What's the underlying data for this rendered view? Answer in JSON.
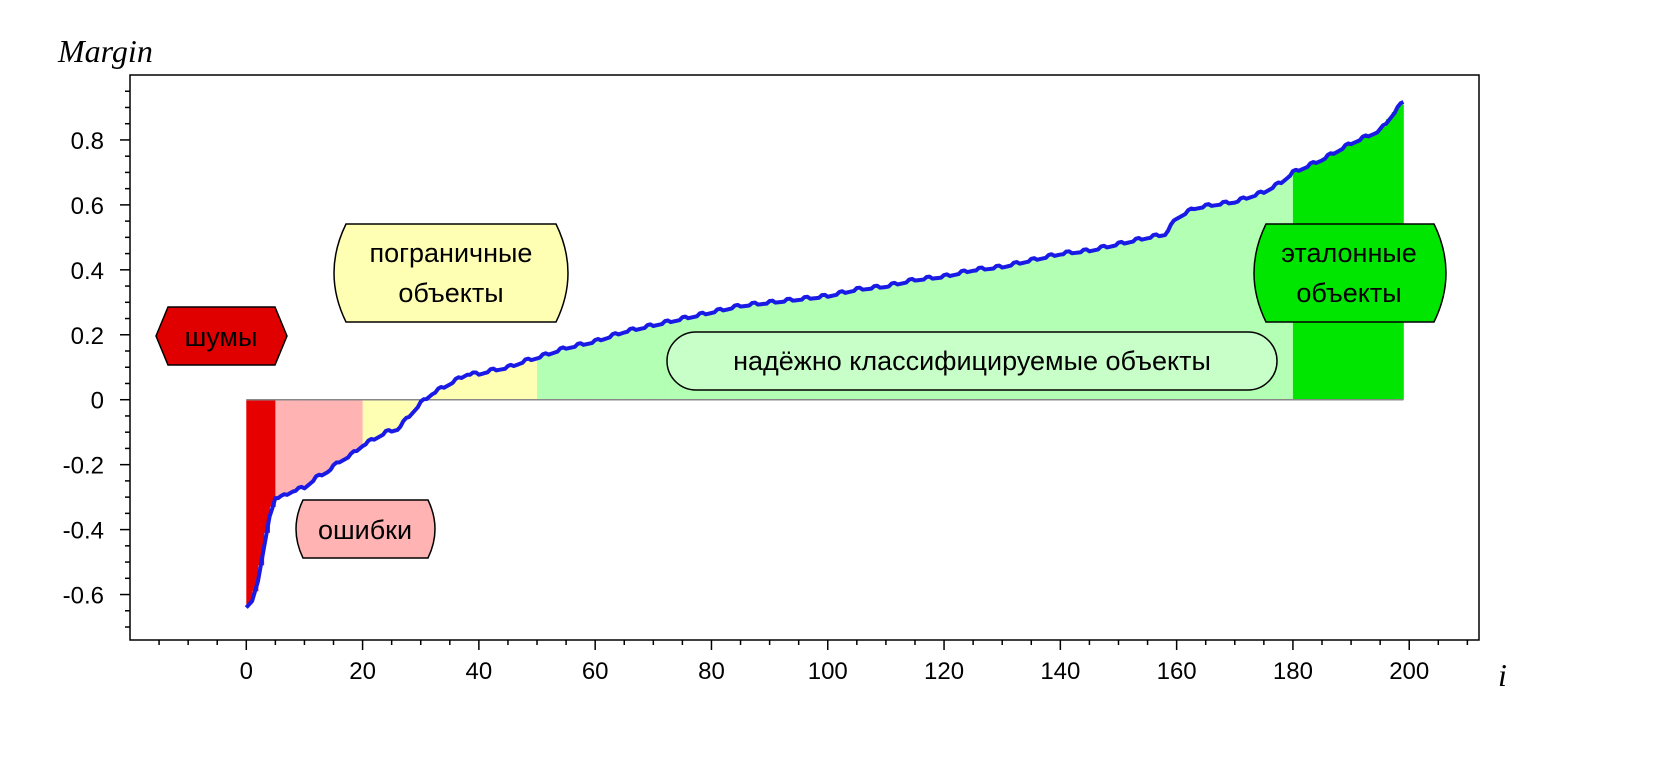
{
  "chart_data": {
    "type": "area",
    "ylabel": "Margin",
    "xlabel": "i",
    "xlim": [
      -20,
      212
    ],
    "ylim": [
      -0.74,
      1.0
    ],
    "xticks": [
      0,
      20,
      40,
      60,
      80,
      100,
      120,
      140,
      160,
      180,
      200
    ],
    "yticks": [
      0.8,
      0.6,
      0.4,
      0.2,
      0,
      -0.2,
      -0.4,
      -0.6
    ],
    "ytick_labels": [
      "0.8",
      "0.6",
      "0.4",
      "0.2",
      "0",
      "-0.2",
      "-0.4",
      "-0.6"
    ],
    "grid": false,
    "line_color": "#1a1ae6",
    "curve": {
      "x": [
        0,
        1,
        2,
        3,
        4,
        5,
        6,
        8,
        10,
        12,
        14,
        16,
        18,
        20,
        22,
        24,
        26,
        28,
        30,
        32,
        34,
        36,
        38,
        40,
        42,
        45,
        48,
        50,
        55,
        60,
        65,
        70,
        75,
        80,
        85,
        90,
        95,
        100,
        105,
        110,
        115,
        120,
        125,
        130,
        135,
        140,
        145,
        150,
        155,
        158,
        160,
        163,
        166,
        170,
        175,
        178,
        180,
        185,
        190,
        195,
        199
      ],
      "y": [
        -0.64,
        -0.62,
        -0.56,
        -0.46,
        -0.36,
        -0.3,
        -0.3,
        -0.28,
        -0.27,
        -0.24,
        -0.22,
        -0.19,
        -0.17,
        -0.14,
        -0.12,
        -0.1,
        -0.09,
        -0.05,
        -0.01,
        0.02,
        0.04,
        0.06,
        0.08,
        0.08,
        0.09,
        0.1,
        0.12,
        0.13,
        0.16,
        0.18,
        0.21,
        0.23,
        0.25,
        0.27,
        0.29,
        0.3,
        0.31,
        0.32,
        0.34,
        0.35,
        0.37,
        0.38,
        0.4,
        0.41,
        0.43,
        0.45,
        0.46,
        0.48,
        0.5,
        0.51,
        0.56,
        0.59,
        0.6,
        0.61,
        0.64,
        0.67,
        0.7,
        0.74,
        0.79,
        0.83,
        0.92
      ]
    },
    "regions": [
      {
        "name": "noise",
        "from": 0,
        "to": 5,
        "color": "#e60000"
      },
      {
        "name": "errors",
        "from": 5,
        "to": 20,
        "color": "#ffb3b3"
      },
      {
        "name": "borderline",
        "from": 20,
        "to": 50,
        "color": "#ffffb3"
      },
      {
        "name": "reliable",
        "from": 50,
        "to": 180,
        "color": "#b3ffb3"
      },
      {
        "name": "standard",
        "from": 180,
        "to": 199,
        "color": "#00e600"
      }
    ],
    "annotations": {
      "noise": {
        "label": "шумы",
        "color": "#e00000"
      },
      "errors": {
        "label": "ошибки",
        "color": "#ffb3b3"
      },
      "borderline": {
        "line1": "пограничные",
        "line2": "объекты",
        "color": "#ffffb3"
      },
      "reliable": {
        "label": "надёжно классифицируемые объекты",
        "color": "#c8ffc8"
      },
      "standard": {
        "line1": "эталонные",
        "line2": "объекты",
        "color": "#00e600"
      }
    }
  }
}
